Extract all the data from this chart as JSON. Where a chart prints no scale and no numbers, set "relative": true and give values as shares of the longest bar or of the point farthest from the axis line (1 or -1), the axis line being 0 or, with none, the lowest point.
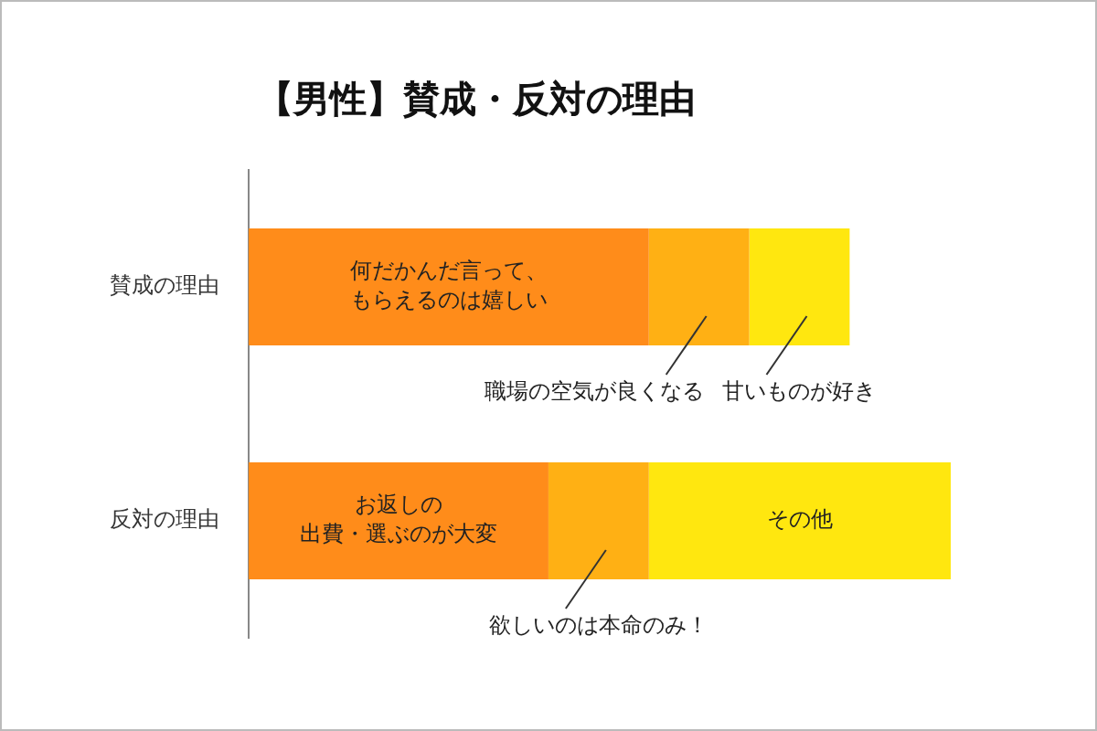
{
  "chart_data": {
    "type": "bar",
    "title": "【男性】賛成・反対の理由",
    "orientation": "horizontal",
    "stacked": true,
    "relative": true,
    "categories": [
      "賛成の理由",
      "反対の理由"
    ],
    "series": [
      {
        "color": "#ff8c1a",
        "values": [
          0.57,
          0.427
        ]
      },
      {
        "color": "#ffb014",
        "values": [
          0.143,
          0.143
        ]
      },
      {
        "color": "#ffe70f",
        "values": [
          0.143,
          0.43
        ]
      }
    ],
    "annotations": [
      "何だかんだ言って、もらえるのは嬉しい",
      "職場の空気が良くなる",
      "甘いものが好き",
      "お返しの出費・選ぶのが大変",
      "欲しいのは本命のみ！",
      "その他"
    ]
  }
}
